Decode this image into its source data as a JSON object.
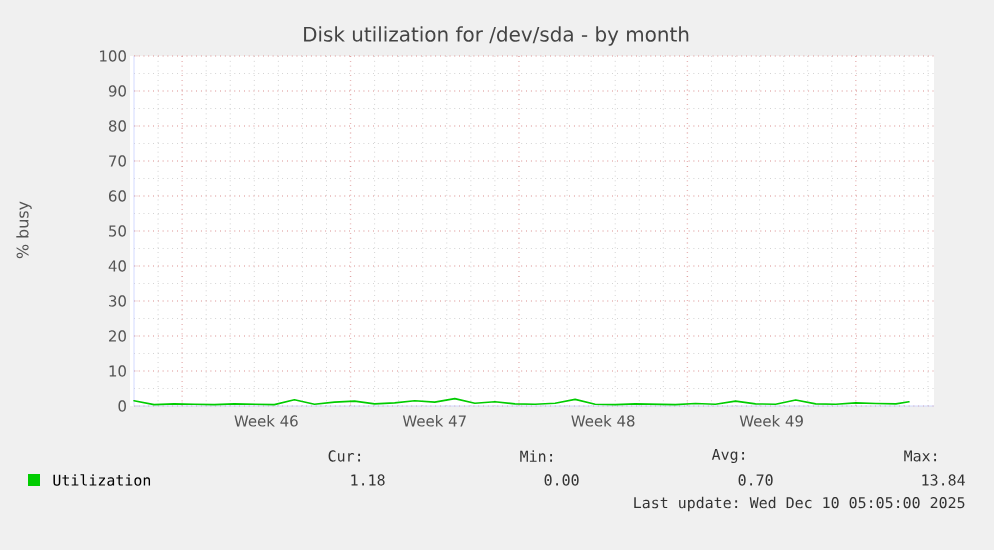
{
  "chart_data": {
    "type": "line",
    "title": "Disk utilization for /dev/sda - by month",
    "ylabel": "% busy",
    "x": [
      "2025-11-08T00:00",
      "2025-11-08T20:00",
      "2025-11-09T16:00",
      "2025-11-10T12:00",
      "2025-11-11T08:00",
      "2025-11-12T04:00",
      "2025-11-13T00:00",
      "2025-11-13T20:00",
      "2025-11-14T16:00",
      "2025-11-15T12:00",
      "2025-11-16T08:00",
      "2025-11-17T04:00",
      "2025-11-18T00:00",
      "2025-11-18T20:00",
      "2025-11-19T16:00",
      "2025-11-20T12:00",
      "2025-11-21T08:00",
      "2025-11-22T04:00",
      "2025-11-23T00:00",
      "2025-11-23T20:00",
      "2025-11-24T16:00",
      "2025-11-25T12:00",
      "2025-11-26T08:00",
      "2025-11-27T04:00",
      "2025-11-28T00:00",
      "2025-11-28T20:00",
      "2025-11-29T16:00",
      "2025-11-30T12:00",
      "2025-12-01T08:00",
      "2025-12-02T04:00",
      "2025-12-03T00:00",
      "2025-12-03T20:00",
      "2025-12-04T16:00",
      "2025-12-05T12:00",
      "2025-12-06T08:00",
      "2025-12-07T04:00",
      "2025-12-08T00:00",
      "2025-12-08T20:00",
      "2025-12-09T16:00",
      "2025-12-10T05:00"
    ],
    "series": [
      {
        "name": "Utilization",
        "color": "#00cc00",
        "values": [
          1.5,
          0.4,
          0.6,
          0.5,
          0.4,
          0.6,
          0.5,
          0.4,
          1.8,
          0.5,
          1.1,
          1.4,
          0.6,
          0.9,
          1.5,
          1.1,
          2.1,
          0.8,
          1.2,
          0.6,
          0.5,
          0.8,
          1.9,
          0.5,
          0.4,
          0.6,
          0.5,
          0.4,
          0.7,
          0.5,
          1.4,
          0.6,
          0.5,
          1.7,
          0.6,
          0.5,
          0.9,
          0.7,
          0.6,
          1.2
        ]
      }
    ],
    "xlim": [
      "2025-11-08T00:00",
      "2025-12-11T06:00"
    ],
    "xticks": [
      {
        "value": "2025-11-10",
        "label": null
      },
      {
        "value": "2025-11-17",
        "label": null
      },
      {
        "value": "2025-11-24",
        "label": null
      },
      {
        "value": "2025-12-01",
        "label": null
      },
      {
        "value": "2025-12-08",
        "label": null
      },
      {
        "value": "2025-11-13T12:00",
        "label": "Week 46"
      },
      {
        "value": "2025-11-20T12:00",
        "label": "Week 47"
      },
      {
        "value": "2025-11-27T12:00",
        "label": "Week 48"
      },
      {
        "value": "2025-12-04T12:00",
        "label": "Week 49"
      }
    ],
    "ylim": [
      0,
      100
    ],
    "yticks": [
      0,
      10,
      20,
      30,
      40,
      50,
      60,
      70,
      80,
      90,
      100
    ],
    "grid": true,
    "legend": "bottom left",
    "marker": "none",
    "line_style": "solid",
    "annotations": [
      "Cur:",
      "Min:",
      "Avg:",
      "Max:",
      "1.18",
      "0.00",
      "0.70",
      "13.84",
      "Last update: Wed Dec 10 05:05:00 2025"
    ]
  }
}
